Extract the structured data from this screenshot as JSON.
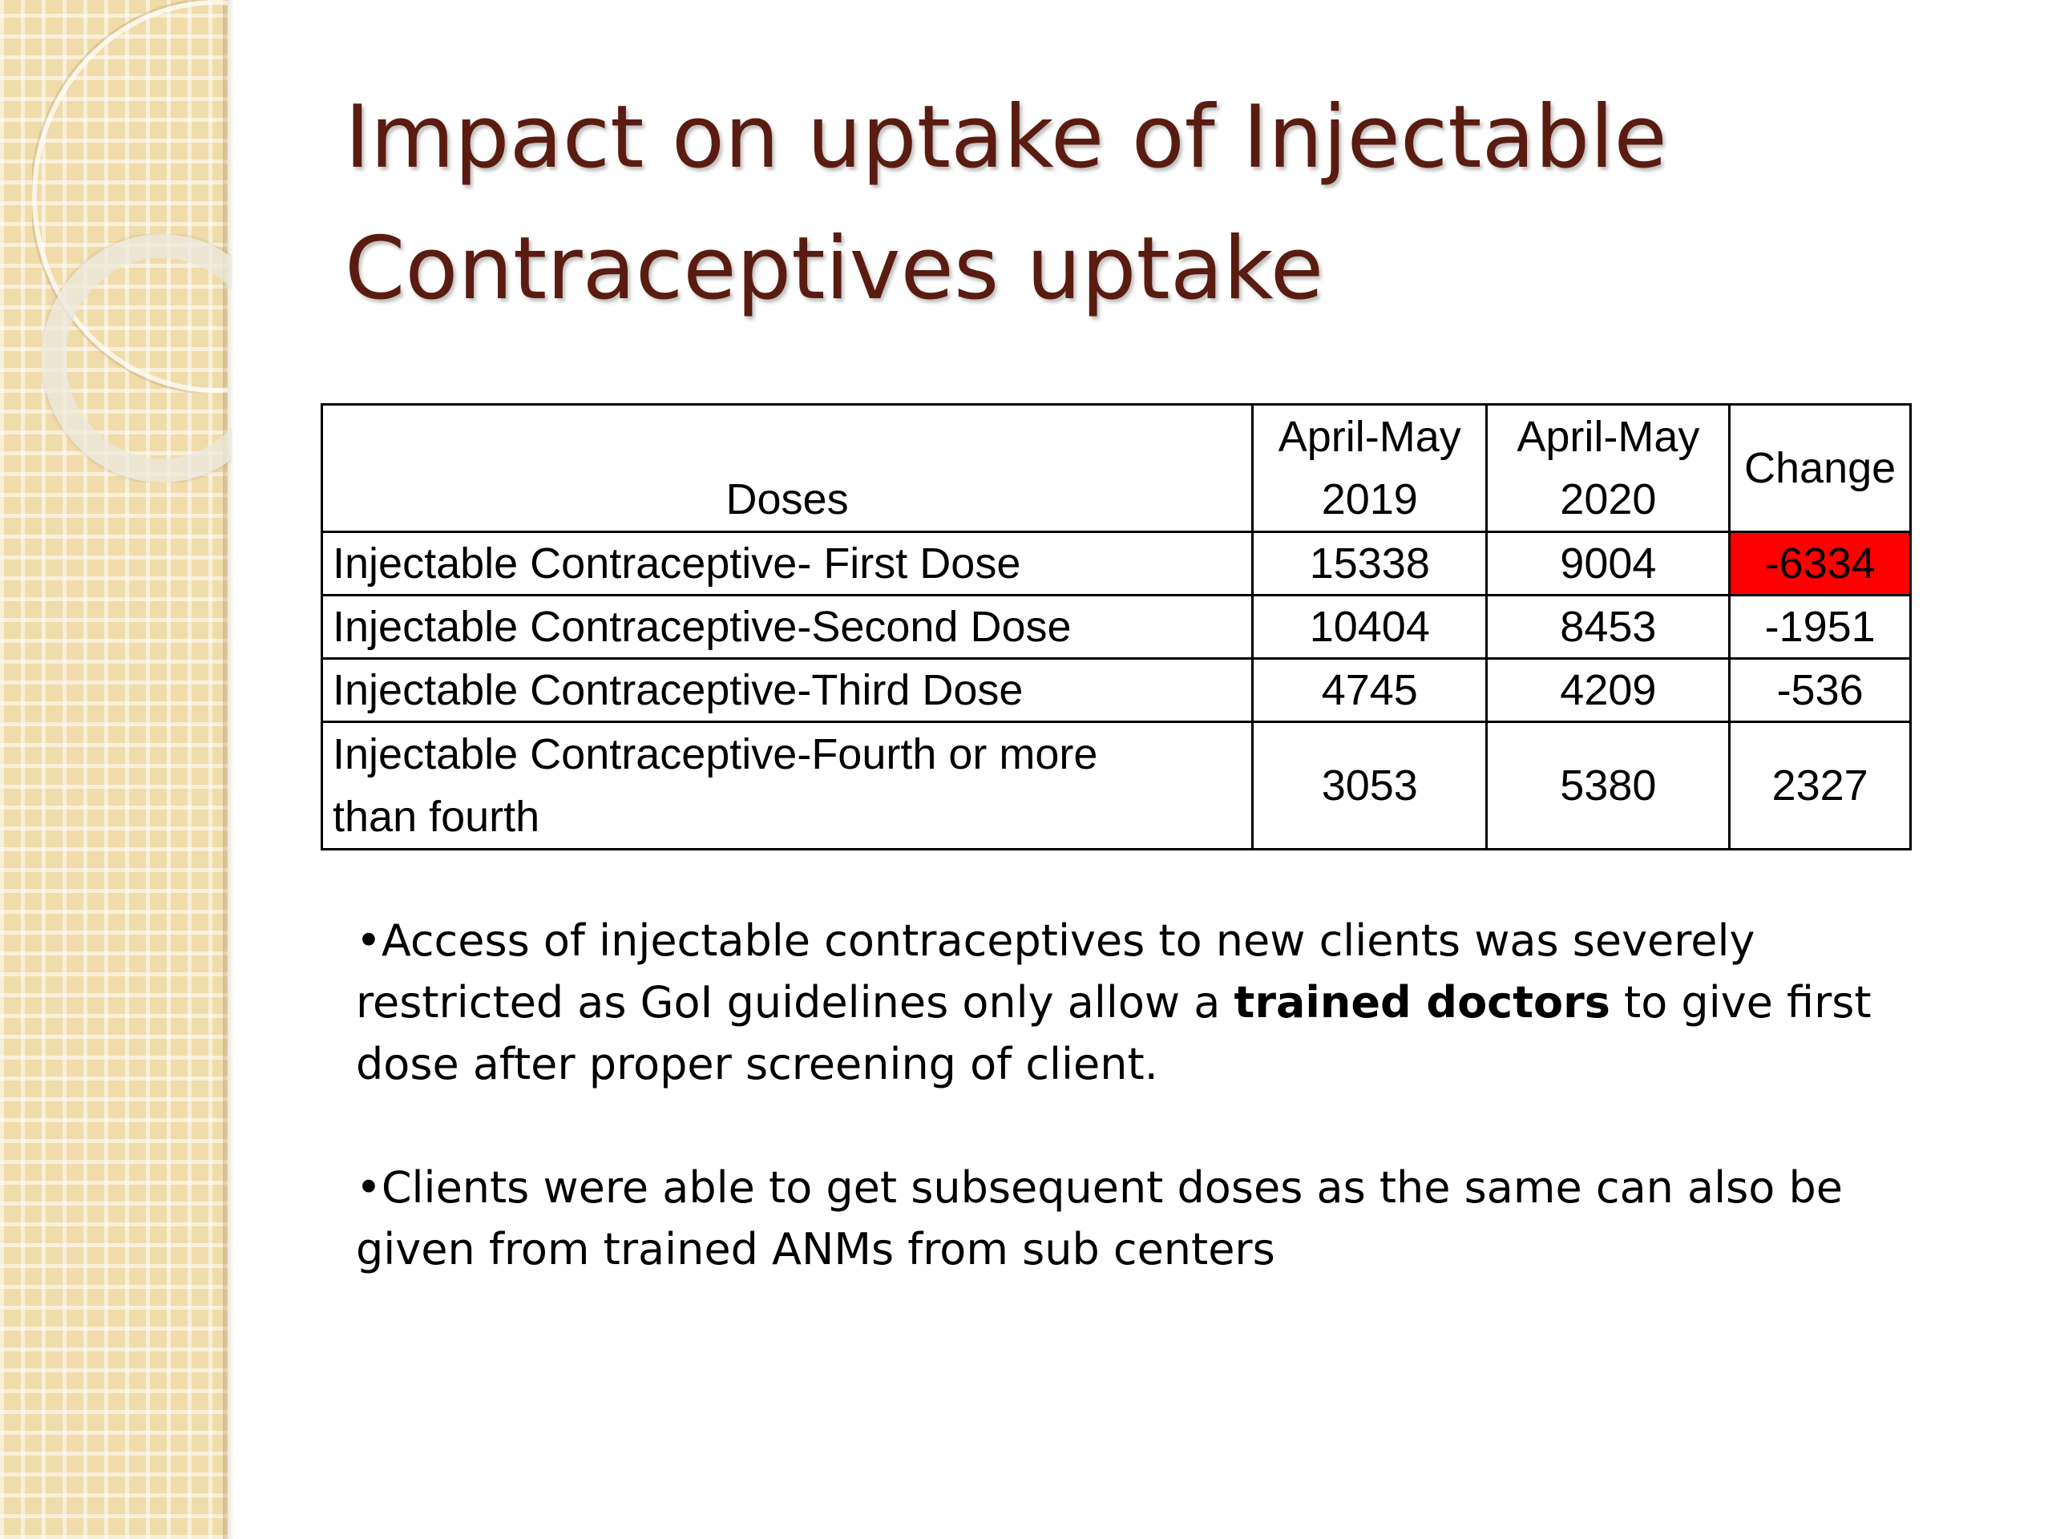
{
  "title": {
    "line1": "Impact on uptake of Injectable",
    "line2": "Contraceptives uptake"
  },
  "table": {
    "headers": {
      "doses": "Doses",
      "col1_line1": "April-May",
      "col1_line2": "2019",
      "col2_line1": "April-May",
      "col2_line2": "2020",
      "change": "Change"
    },
    "rows": [
      {
        "label": "Injectable Contraceptive- First Dose",
        "y2019": "15338",
        "y2020": "9004",
        "change": "-6334"
      },
      {
        "label": "Injectable Contraceptive-Second Dose",
        "y2019": "10404",
        "y2020": "8453",
        "change": "-1951"
      },
      {
        "label": "Injectable Contraceptive-Third Dose",
        "y2019": "4745",
        "y2020": "4209",
        "change": "-536"
      },
      {
        "label_line1": "Injectable Contraceptive-Fourth or more",
        "label_line2": "than fourth",
        "y2019": "3053",
        "y2020": "5380",
        "change": "2327"
      }
    ],
    "highlight_color": "#ff0000"
  },
  "bullets": {
    "b1_pre": "•Access of injectable contraceptives to new clients was severely restricted as GoI guidelines only allow a ",
    "b1_bold": "trained doctors",
    "b1_post": " to give first dose after proper screening of client.",
    "b2": "•Clients were able to get subsequent doses as the same can also be given from trained ANMs from sub centers"
  },
  "colors": {
    "title": "#5a1c10",
    "side_band": "#efdcaa"
  }
}
